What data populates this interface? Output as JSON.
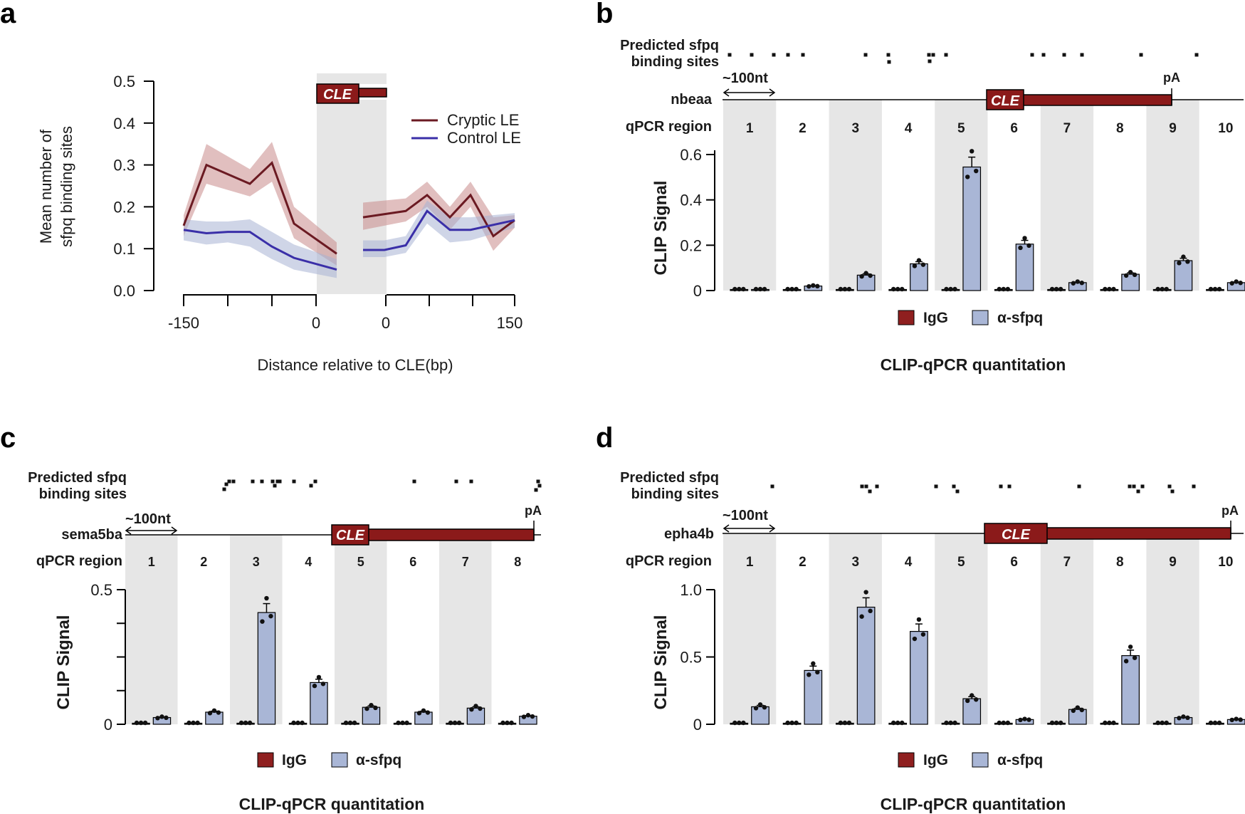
{
  "colors": {
    "dark_red": "#6b1a22",
    "blue": "#3a2fa8",
    "bar_red": "#8f1f1f",
    "bar_blue": "#a9b6d6",
    "shade": "#e6e6e6"
  },
  "panel_a": {
    "label": "a",
    "cle_label": "CLE",
    "chart_data": {
      "type": "line",
      "ylabel_line1": "Mean number of",
      "ylabel_line2": "sfpq binding sites",
      "xlabel": "Distance relative to CLE(bp)",
      "ylim": [
        0,
        0.5
      ],
      "yticks": [
        "0.0",
        "0.1",
        "0.2",
        "0.3",
        "0.4",
        "0.5"
      ],
      "ytick_values": [
        0,
        0.1,
        0.2,
        0.3,
        0.4,
        0.5
      ],
      "left_xticks": [
        "-150",
        "0"
      ],
      "right_xticks": [
        "0",
        "150"
      ],
      "legend": [
        "Cryptic LE",
        "Control LE"
      ],
      "series": [
        {
          "name": "Cryptic LE",
          "left": [
            0.155,
            0.3,
            0.255,
            0.305,
            0.16,
            0.088
          ],
          "left_lo": [
            0.13,
            0.255,
            0.225,
            0.26,
            0.125,
            0.06
          ],
          "left_hi": [
            0.18,
            0.35,
            0.29,
            0.355,
            0.2,
            0.115
          ],
          "right": [
            0.175,
            0.19,
            0.228,
            0.175,
            0.228,
            0.13,
            0.168
          ],
          "right_lo": [
            0.145,
            0.165,
            0.2,
            0.145,
            0.2,
            0.095,
            0.15
          ],
          "right_hi": [
            0.21,
            0.22,
            0.26,
            0.2,
            0.26,
            0.175,
            0.18
          ]
        },
        {
          "name": "Control LE",
          "left": [
            0.145,
            0.137,
            0.14,
            0.14,
            0.105,
            0.078,
            0.05
          ],
          "left_lo": [
            0.12,
            0.11,
            0.115,
            0.105,
            0.075,
            0.05,
            0.03
          ],
          "left_hi": [
            0.17,
            0.165,
            0.165,
            0.17,
            0.14,
            0.11,
            0.075
          ],
          "right": [
            0.097,
            0.097,
            0.108,
            0.19,
            0.145,
            0.145,
            0.168
          ],
          "right_lo": [
            0.08,
            0.08,
            0.09,
            0.16,
            0.115,
            0.12,
            0.15
          ],
          "right_hi": [
            0.12,
            0.12,
            0.13,
            0.215,
            0.175,
            0.175,
            0.185
          ]
        }
      ]
    }
  },
  "panel_b": {
    "label": "b",
    "gene": "nbeaa",
    "scale": "~100nt",
    "pA": "pA",
    "sites_line1": "Predicted sfpq",
    "sites_line2": "binding sites",
    "qpcr_label": "qPCR region",
    "cle_label": "CLE",
    "legend_igg": "IgG",
    "legend_sfpq": "α-sfpq",
    "caption": "CLIP-qPCR quantitation",
    "chart_data": {
      "type": "bar",
      "ylabel": "CLIP Signal",
      "ylim": [
        0,
        0.6
      ],
      "yticks": [
        "0",
        "0.2",
        "0.4",
        "0.6"
      ],
      "ytick_values": [
        0,
        0.2,
        0.4,
        0.6
      ],
      "categories": [
        "1",
        "2",
        "3",
        "4",
        "5",
        "6",
        "7",
        "8",
        "9",
        "10"
      ],
      "series": [
        {
          "name": "IgG",
          "values": [
            0.003,
            0.003,
            0.003,
            0.003,
            0.003,
            0.003,
            0.003,
            0.003,
            0.003,
            0.003
          ]
        },
        {
          "name": "α-sfpq",
          "values": [
            0.004,
            0.02,
            0.068,
            0.118,
            0.545,
            0.205,
            0.035,
            0.072,
            0.132,
            0.035
          ]
        }
      ]
    }
  },
  "panel_c": {
    "label": "c",
    "gene": "sema5ba",
    "scale": "~100nt",
    "pA": "pA",
    "sites_line1": "Predicted sfpq",
    "sites_line2": "binding sites",
    "qpcr_label": "qPCR region",
    "cle_label": "CLE",
    "legend_igg": "IgG",
    "legend_sfpq": "α-sfpq",
    "caption": "CLIP-qPCR quantitation",
    "chart_data": {
      "type": "bar",
      "ylabel": "CLIP Signal",
      "ylim": [
        0,
        0.5
      ],
      "yticks": [
        "0",
        "0.5"
      ],
      "ytick_values": [
        0,
        0.125,
        0.25,
        0.375,
        0.5
      ],
      "categories": [
        "1",
        "2",
        "3",
        "4",
        "5",
        "6",
        "7",
        "8"
      ],
      "series": [
        {
          "name": "IgG",
          "values": [
            0.003,
            0.003,
            0.003,
            0.003,
            0.004,
            0.003,
            0.003,
            0.003
          ]
        },
        {
          "name": "α-sfpq",
          "values": [
            0.025,
            0.045,
            0.415,
            0.155,
            0.063,
            0.045,
            0.06,
            0.03
          ]
        }
      ]
    }
  },
  "panel_d": {
    "label": "d",
    "gene": "epha4b",
    "scale": "~100nt",
    "pA": "pA",
    "sites_line1": "Predicted sfpq",
    "sites_line2": "binding sites",
    "qpcr_label": "qPCR region",
    "cle_label": "CLE",
    "legend_igg": "IgG",
    "legend_sfpq": "α-sfpq",
    "caption": "CLIP-qPCR quantitation",
    "chart_data": {
      "type": "bar",
      "ylabel": "CLIP Signal",
      "ylim": [
        0,
        1.0
      ],
      "yticks": [
        "0",
        "0.5",
        "1.0"
      ],
      "ytick_values": [
        0,
        0.5,
        1.0
      ],
      "categories": [
        "1",
        "2",
        "3",
        "4",
        "5",
        "6",
        "7",
        "8",
        "9",
        "10"
      ],
      "series": [
        {
          "name": "IgG",
          "values": [
            0.005,
            0.006,
            0.006,
            0.006,
            0.006,
            0.005,
            0.005,
            0.005,
            0.005,
            0.005
          ]
        },
        {
          "name": "α-sfpq",
          "values": [
            0.13,
            0.4,
            0.87,
            0.69,
            0.19,
            0.035,
            0.11,
            0.51,
            0.05,
            0.035
          ]
        }
      ]
    }
  }
}
